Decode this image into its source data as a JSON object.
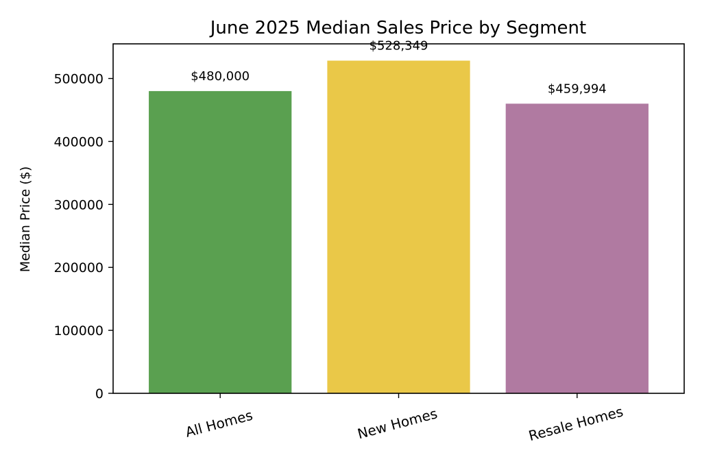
{
  "chart_data": {
    "type": "bar",
    "title": "June 2025 Median Sales Price by Segment",
    "xlabel": "",
    "ylabel": "Median Price ($)",
    "categories": [
      "All Homes",
      "New Homes",
      "Resale Homes"
    ],
    "values": [
      480000,
      528349,
      459994
    ],
    "value_labels": [
      "$480,000",
      "$528,349",
      "$459,994"
    ],
    "colors": [
      "#5aa050",
      "#eac848",
      "#b07aa1"
    ],
    "ylim": [
      0,
      555000
    ],
    "yticks": [
      0,
      100000,
      200000,
      300000,
      400000,
      500000
    ],
    "ytick_labels": [
      "0",
      "100000",
      "200000",
      "300000",
      "400000",
      "500000"
    ],
    "grid": false,
    "legend": "none"
  }
}
